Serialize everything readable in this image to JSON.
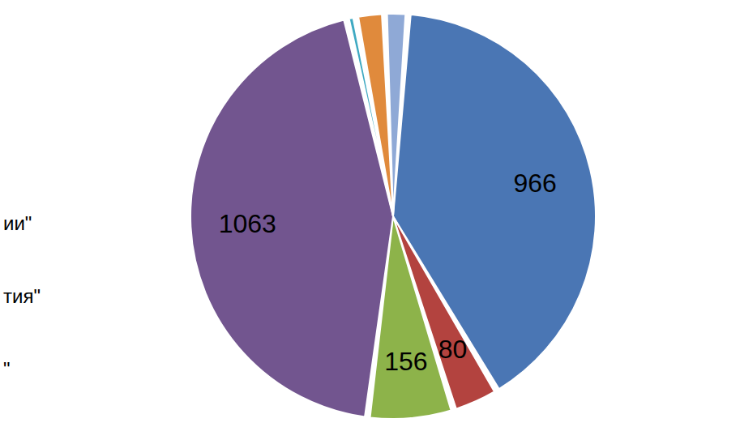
{
  "chart_data": {
    "type": "pie",
    "categories": [
      null,
      null,
      null,
      null,
      null,
      null,
      null
    ],
    "values": [
      966,
      80,
      156,
      1063,
      8,
      45,
      35
    ],
    "value_labels": [
      "966",
      "80",
      "156",
      "1063",
      null,
      null,
      null
    ],
    "colors": [
      "#4a76b4",
      "#b3433f",
      "#8db34a",
      "#72558f",
      "#3fa9c2",
      "#e08a3c",
      "#8fa9d6"
    ],
    "data_labels": true,
    "annotations": [
      "ии\"",
      "тия\"",
      "\""
    ]
  }
}
